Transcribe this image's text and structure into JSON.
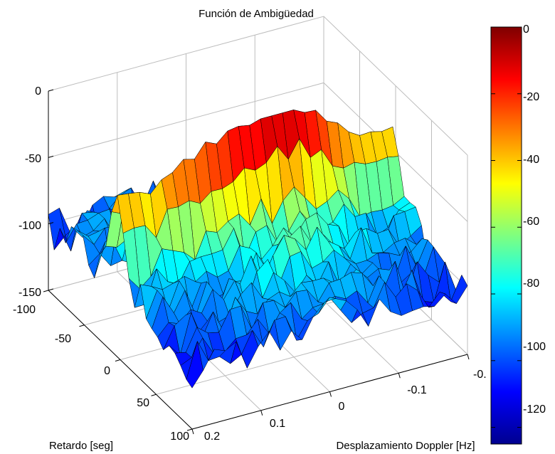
{
  "chart_data": {
    "type": "surface",
    "title": "Función de Ambigüedad",
    "xlabel": "Desplazamiento Doppler [Hz]",
    "ylabel": "Retardo [seg]",
    "zlabel": "",
    "x_ticks": [
      "0.2",
      "0.1",
      "0",
      "-0.1",
      "-0."
    ],
    "y_ticks": [
      "-100",
      "-50",
      "0",
      "50",
      "100"
    ],
    "z_ticks": [
      "0",
      "-50",
      "-100",
      "-150"
    ],
    "zlim": [
      -150,
      0
    ],
    "grid": true,
    "colormap": "jet",
    "colorbar": {
      "ticks": [
        "0",
        "-20",
        "-40",
        "-60",
        "-80",
        "-100",
        "-120"
      ],
      "range": [
        -125,
        0
      ]
    },
    "surface_summary": {
      "peak_value": 0,
      "peak_location": "ridge along doppler axis at retardo = 0",
      "noise_floor_range": [
        -125,
        -60
      ]
    }
  }
}
